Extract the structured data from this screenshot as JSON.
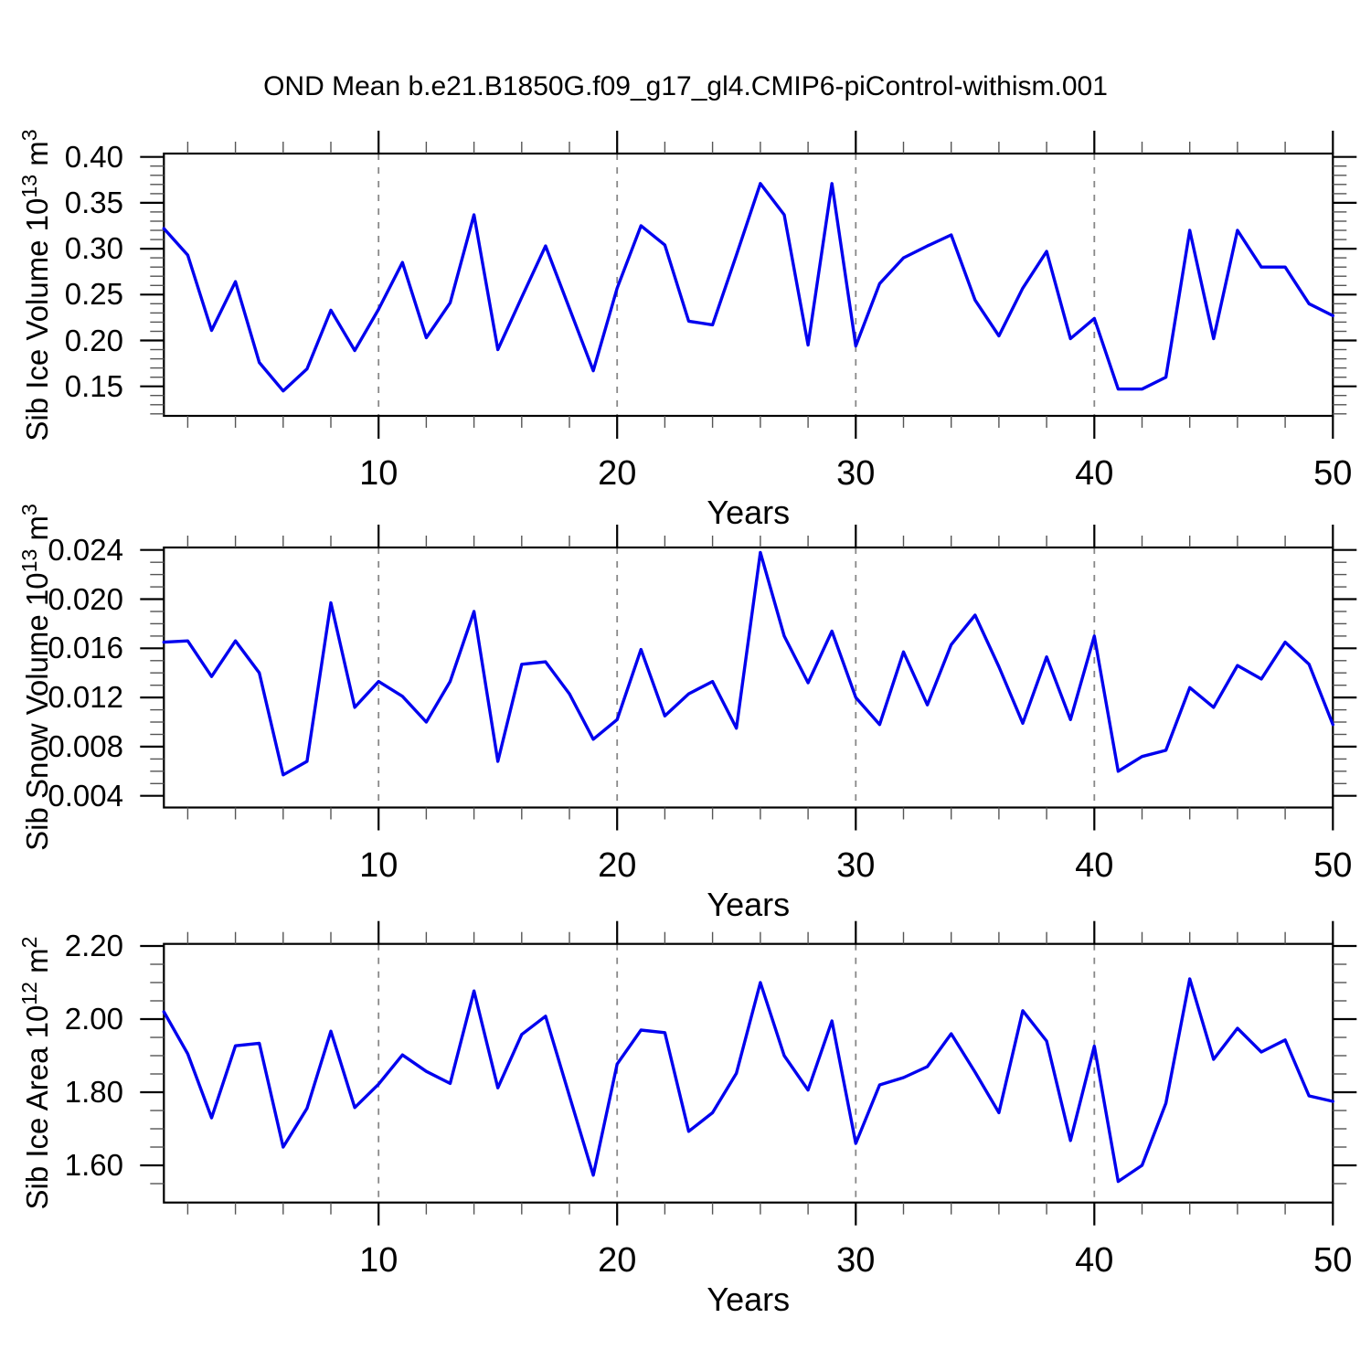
{
  "title": "OND Mean b.e21.B1850G.f09_g17_gl4.CMIP6-piControl-withism.001",
  "colors": {
    "line": "#0000EE",
    "grid": "#888888",
    "axis": "#000000"
  },
  "chart_data": [
    {
      "type": "line",
      "name": "sib-ice-volume",
      "ylabel_plain": "Sib Ice Volume 10^13 m^3",
      "ylabel_parts": {
        "text": "Sib Ice Volume",
        "base": "10",
        "exp": "13",
        "unit": "m",
        "unit_exp": "3"
      },
      "xlabel": "Years",
      "xlim": [
        1,
        50
      ],
      "x_ticks": [
        10,
        20,
        30,
        40,
        50
      ],
      "x_minor_step": 2,
      "grid_x": [
        10,
        20,
        30,
        40
      ],
      "ylim": [
        0.11783,
        0.40369
      ],
      "y_ticks": [
        0.15,
        0.2,
        0.25,
        0.3,
        0.35,
        0.4
      ],
      "y_tick_labels": [
        "0.15",
        "0.20",
        "0.25",
        "0.30",
        "0.35",
        "0.40"
      ],
      "y_minor_step": 0.01,
      "line_color": "#0000EE",
      "x_start": 1,
      "values": [
        0.322,
        0.293,
        0.211,
        0.264,
        0.176,
        0.145,
        0.169,
        0.233,
        0.189,
        0.234,
        0.285,
        0.203,
        0.241,
        0.337,
        0.19,
        0.247,
        0.303,
        0.235,
        0.167,
        0.257,
        0.325,
        0.304,
        0.221,
        0.217,
        0.293,
        0.371,
        0.337,
        0.195,
        0.371,
        0.194,
        0.262,
        0.29,
        0.303,
        0.315,
        0.244,
        0.205,
        0.257,
        0.297,
        0.202,
        0.224,
        0.147,
        0.147,
        0.16,
        0.32,
        0.202,
        0.32,
        0.28,
        0.28,
        0.24,
        0.227
      ]
    },
    {
      "type": "line",
      "name": "sib-snow-volume",
      "ylabel_plain": "Sib Snow Volume 10^13 m^3",
      "ylabel_parts": {
        "text": "Sib Snow Volume",
        "base": "10",
        "exp": "13",
        "unit": "m",
        "unit_exp": "3"
      },
      "xlabel": "Years",
      "xlim": [
        1,
        50
      ],
      "x_ticks": [
        10,
        20,
        30,
        40,
        50
      ],
      "x_minor_step": 2,
      "grid_x": [
        10,
        20,
        30,
        40
      ],
      "ylim": [
        0.0030485,
        0.024201
      ],
      "y_ticks": [
        0.004,
        0.008,
        0.012,
        0.016,
        0.02,
        0.024
      ],
      "y_tick_labels": [
        "0.004",
        "0.008",
        "0.012",
        "0.016",
        "0.020",
        "0.024"
      ],
      "y_minor_step": 0.001,
      "line_color": "#0000EE",
      "x_start": 1,
      "values": [
        0.0165,
        0.0166,
        0.0137,
        0.0166,
        0.014,
        0.0057,
        0.0068,
        0.0197,
        0.0112,
        0.0133,
        0.0121,
        0.01,
        0.0133,
        0.019,
        0.0068,
        0.0147,
        0.0149,
        0.0123,
        0.0086,
        0.0102,
        0.0159,
        0.0105,
        0.0123,
        0.0133,
        0.0095,
        0.0238,
        0.017,
        0.0132,
        0.0174,
        0.012,
        0.0098,
        0.0157,
        0.0114,
        0.0163,
        0.0187,
        0.0145,
        0.0099,
        0.0153,
        0.0102,
        0.017,
        0.006,
        0.0072,
        0.0077,
        0.0128,
        0.0112,
        0.0146,
        0.0135,
        0.0165,
        0.0147,
        0.0098
      ]
    },
    {
      "type": "line",
      "name": "sib-ice-area",
      "ylabel_plain": "Sib Ice Area 10^12 m^2",
      "ylabel_parts": {
        "text": "Sib Ice Area",
        "base": "10",
        "exp": "12",
        "unit": "m",
        "unit_exp": "2"
      },
      "xlabel": "Years",
      "xlim": [
        1,
        50
      ],
      "x_ticks": [
        10,
        20,
        30,
        40,
        50
      ],
      "x_minor_step": 2,
      "grid_x": [
        10,
        20,
        30,
        40
      ],
      "ylim": [
        1.49825,
        2.20575
      ],
      "y_ticks": [
        1.6,
        1.8,
        2.0,
        2.2
      ],
      "y_tick_labels": [
        "1.60",
        "1.80",
        "2.00",
        "2.20"
      ],
      "y_minor_step": 0.05,
      "line_color": "#0000EE",
      "x_start": 1,
      "values": [
        2.02,
        1.905,
        1.73,
        1.927,
        1.934,
        1.65,
        1.756,
        1.967,
        1.758,
        1.822,
        1.902,
        1.857,
        1.824,
        2.077,
        1.812,
        1.958,
        2.008,
        1.79,
        1.573,
        1.877,
        1.97,
        1.963,
        1.693,
        1.744,
        1.852,
        2.1,
        1.9,
        1.806,
        1.995,
        1.66,
        1.82,
        1.84,
        1.87,
        1.96,
        1.855,
        1.744,
        2.023,
        1.94,
        1.668,
        1.926,
        1.556,
        1.6,
        1.77,
        2.11,
        1.89,
        1.975,
        1.91,
        1.943,
        1.79,
        1.775
      ]
    }
  ]
}
